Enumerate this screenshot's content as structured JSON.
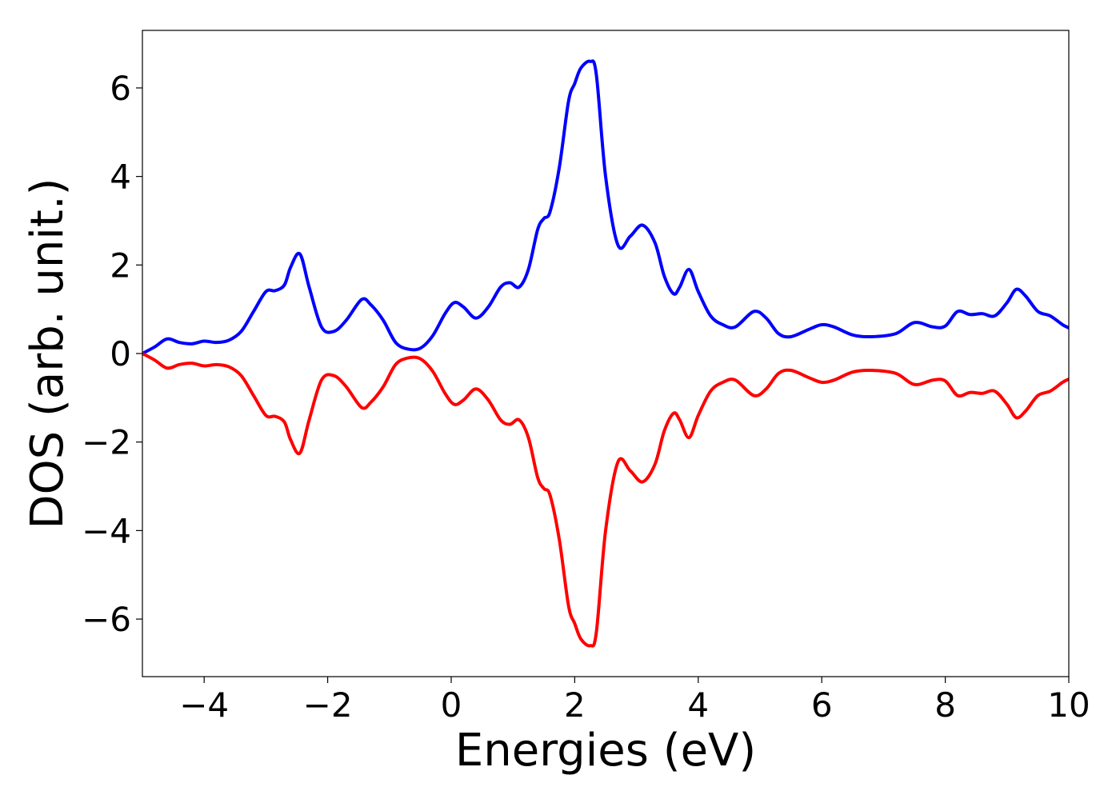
{
  "chart_data": {
    "type": "line",
    "title": "",
    "xlabel": "Energies (eV)",
    "ylabel": "DOS (arb. unit.)",
    "xlim": [
      -5,
      10
    ],
    "ylim": [
      -7.3,
      7.3
    ],
    "xticks": [
      -4,
      -2,
      0,
      2,
      4,
      6,
      8,
      10
    ],
    "yticks": [
      -6,
      -4,
      -2,
      0,
      2,
      4,
      6
    ],
    "xtick_labels": [
      "−4",
      "−2",
      "0",
      "2",
      "4",
      "6",
      "8",
      "10"
    ],
    "ytick_labels": [
      "−6",
      "−4",
      "−2",
      "0",
      "2",
      "4",
      "6"
    ],
    "grid": false,
    "legend": "none",
    "series": [
      {
        "color": "#0000ff",
        "x": [
          -5.0,
          -4.8,
          -4.6,
          -4.4,
          -4.2,
          -4.0,
          -3.8,
          -3.6,
          -3.4,
          -3.2,
          -3.0,
          -2.85,
          -2.7,
          -2.6,
          -2.45,
          -2.3,
          -2.1,
          -1.9,
          -1.7,
          -1.45,
          -1.3,
          -1.1,
          -0.9,
          -0.7,
          -0.5,
          -0.3,
          -0.1,
          0.05,
          0.2,
          0.4,
          0.6,
          0.8,
          0.95,
          1.1,
          1.25,
          1.4,
          1.5,
          1.6,
          1.75,
          1.9,
          2.0,
          2.1,
          2.25,
          2.35,
          2.5,
          2.7,
          2.9,
          3.1,
          3.3,
          3.45,
          3.6,
          3.7,
          3.85,
          4.0,
          4.2,
          4.4,
          4.6,
          4.9,
          5.1,
          5.3,
          5.5,
          5.8,
          6.0,
          6.2,
          6.5,
          6.8,
          7.2,
          7.5,
          7.8,
          8.0,
          8.2,
          8.4,
          8.6,
          8.8,
          9.0,
          9.15,
          9.3,
          9.5,
          9.7,
          9.9,
          10.0
        ],
        "values": [
          0.0,
          0.15,
          0.33,
          0.25,
          0.22,
          0.28,
          0.25,
          0.3,
          0.5,
          0.95,
          1.4,
          1.42,
          1.55,
          1.95,
          2.25,
          1.5,
          0.6,
          0.5,
          0.75,
          1.22,
          1.1,
          0.75,
          0.25,
          0.1,
          0.12,
          0.4,
          0.9,
          1.15,
          1.05,
          0.8,
          1.05,
          1.5,
          1.6,
          1.5,
          1.9,
          2.8,
          3.05,
          3.2,
          4.2,
          5.7,
          6.1,
          6.45,
          6.6,
          6.3,
          4.0,
          2.45,
          2.65,
          2.9,
          2.5,
          1.75,
          1.35,
          1.5,
          1.9,
          1.4,
          0.85,
          0.65,
          0.6,
          0.95,
          0.8,
          0.45,
          0.38,
          0.55,
          0.65,
          0.6,
          0.42,
          0.38,
          0.45,
          0.7,
          0.6,
          0.62,
          0.95,
          0.88,
          0.9,
          0.85,
          1.15,
          1.45,
          1.3,
          0.95,
          0.85,
          0.65,
          0.58
        ]
      },
      {
        "color": "#ff0000",
        "x": [
          -5.0,
          -4.8,
          -4.6,
          -4.4,
          -4.2,
          -4.0,
          -3.8,
          -3.6,
          -3.4,
          -3.2,
          -3.0,
          -2.85,
          -2.7,
          -2.6,
          -2.45,
          -2.3,
          -2.1,
          -1.9,
          -1.7,
          -1.45,
          -1.3,
          -1.1,
          -0.9,
          -0.7,
          -0.5,
          -0.3,
          -0.1,
          0.05,
          0.2,
          0.4,
          0.6,
          0.8,
          0.95,
          1.1,
          1.25,
          1.4,
          1.5,
          1.6,
          1.75,
          1.9,
          2.0,
          2.1,
          2.25,
          2.35,
          2.5,
          2.7,
          2.9,
          3.1,
          3.3,
          3.45,
          3.6,
          3.7,
          3.85,
          4.0,
          4.2,
          4.4,
          4.6,
          4.9,
          5.1,
          5.3,
          5.5,
          5.8,
          6.0,
          6.2,
          6.5,
          6.8,
          7.2,
          7.5,
          7.8,
          8.0,
          8.2,
          8.4,
          8.6,
          8.8,
          9.0,
          9.15,
          9.3,
          9.5,
          9.7,
          9.9,
          10.0
        ],
        "values": [
          0.0,
          -0.15,
          -0.33,
          -0.25,
          -0.22,
          -0.28,
          -0.25,
          -0.3,
          -0.5,
          -0.95,
          -1.4,
          -1.42,
          -1.55,
          -1.95,
          -2.25,
          -1.5,
          -0.6,
          -0.5,
          -0.75,
          -1.22,
          -1.1,
          -0.75,
          -0.25,
          -0.1,
          -0.12,
          -0.4,
          -0.9,
          -1.15,
          -1.05,
          -0.8,
          -1.05,
          -1.5,
          -1.6,
          -1.5,
          -1.9,
          -2.8,
          -3.05,
          -3.2,
          -4.2,
          -5.7,
          -6.1,
          -6.45,
          -6.6,
          -6.3,
          -4.0,
          -2.45,
          -2.65,
          -2.9,
          -2.5,
          -1.75,
          -1.35,
          -1.5,
          -1.9,
          -1.4,
          -0.85,
          -0.65,
          -0.6,
          -0.95,
          -0.8,
          -0.45,
          -0.38,
          -0.55,
          -0.65,
          -0.6,
          -0.42,
          -0.38,
          -0.45,
          -0.7,
          -0.6,
          -0.62,
          -0.95,
          -0.88,
          -0.9,
          -0.85,
          -1.15,
          -1.45,
          -1.3,
          -0.95,
          -0.85,
          -0.65,
          -0.58
        ]
      }
    ]
  }
}
